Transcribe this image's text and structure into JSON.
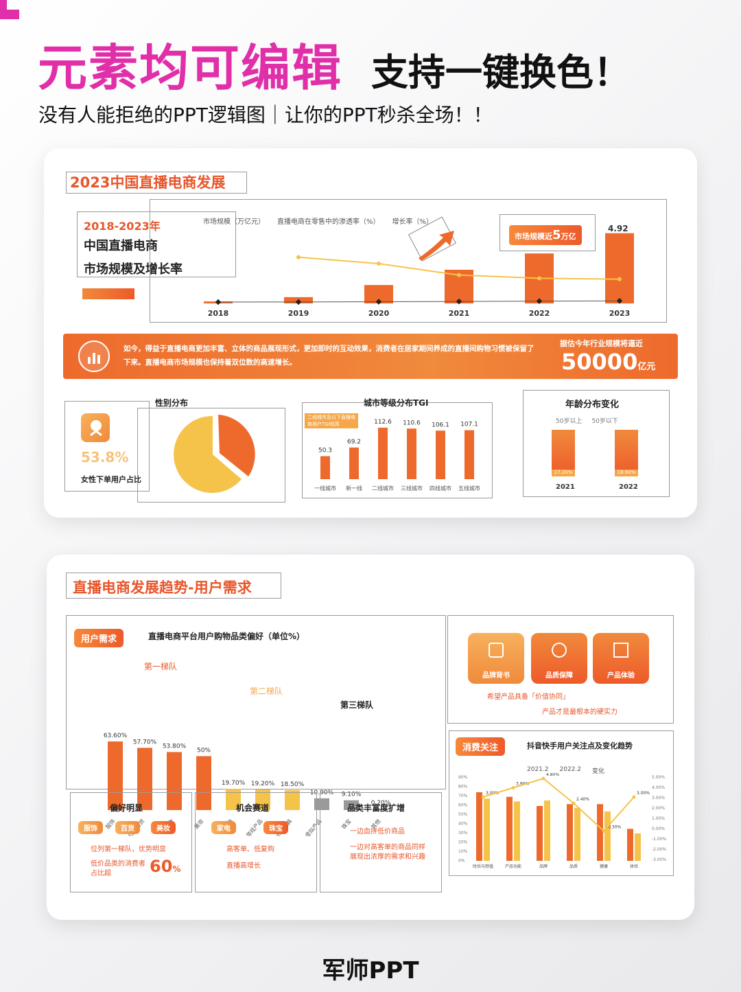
{
  "header": {
    "title_main": "元素均可编辑",
    "title_sub": "支持一键换色！",
    "tagline": "没有人能拒绝的PPT逻辑图｜让你的PPT秒杀全场！！"
  },
  "slide1": {
    "title": "2023中国直播电商发展",
    "intro_year": "2018-2023年",
    "intro_line1": "中国直播电商",
    "intro_line2": "市场规模及增长率",
    "callout": "市场规模近",
    "callout_num": "5",
    "callout_unit": "万亿",
    "top_value_label": "4.92",
    "legend": [
      "市场规模（万亿元）",
      "直播电商在零售中的渗透率（%）",
      "增长率（%）"
    ],
    "banner_text": "如今，得益于直播电商更加丰富、立体的商品展现形式，更加即时的互动效果，消费者在居家期间养成的直播间购物习惯被保留了下来。直播电商市场规模也保持着双位数的高速增长。",
    "banner_right_label": "据估今年行业规模将逼近",
    "banner_right_value": "50000",
    "banner_right_unit": "亿元",
    "female_pct": "53.8%",
    "female_label": "女性下单用户占比",
    "gender_title": "性别分布",
    "city_title": "城市等级分布TGI",
    "city_note": "二线城市及以下直播电商用户TGI较高",
    "age_title": "年龄分布变化",
    "age_legend": [
      "50岁以上",
      "50岁以下"
    ],
    "age_labels": [
      "17.20%",
      "18.90%"
    ]
  },
  "chart_data": [
    {
      "type": "bar",
      "title": "",
      "categories": [
        "2018",
        "2019",
        "2020",
        "2021",
        "2022",
        "2023"
      ],
      "series": [
        {
          "name": "市场规模（万亿元）",
          "values": [
            0.14,
            0.44,
            1.29,
            2.36,
            3.5,
            4.92
          ]
        },
        {
          "name": "增长率（%）",
          "values": [
            null,
            280,
            210,
            85,
            50,
            40
          ]
        },
        {
          "name": "直播电商在零售中的渗透率（%）",
          "values": [
            0.5,
            1.5,
            4.5,
            9.2,
            13.5,
            17.0
          ]
        }
      ]
    },
    {
      "type": "bar",
      "title": "城市等级分布TGI",
      "categories": [
        "一线城市",
        "新一线",
        "二线城市",
        "三线城市",
        "四线城市",
        "五线城市"
      ],
      "values": [
        50.3,
        69.2,
        112.6,
        110.6,
        106.1,
        107.1
      ]
    },
    {
      "type": "bar",
      "title": "直播电商平台用户购物品类偏好（单位%）",
      "categories": [
        "服饰",
        "日用百货",
        "美食",
        "美妆",
        "家电",
        "游戏产品",
        "书籍文具",
        "虚拟产品",
        "珠宝",
        "其他"
      ],
      "values": [
        63.6,
        57.7,
        53.8,
        50,
        19.7,
        19.2,
        18.5,
        10.9,
        9.1,
        0.2
      ],
      "value_labels": [
        "63.60%",
        "57.70%",
        "53.80%",
        "50%",
        "19.70%",
        "19.20%",
        "18.50%",
        "10.90%",
        "9.10%",
        "0.20%"
      ]
    }
  ],
  "slide2": {
    "title": "直播电商发展趋势-用户需求",
    "user_need_tag": "用户需求",
    "pref_title": "直播电商平台用户购物品类偏好（单位%）",
    "tiers": [
      "第一梯队",
      "第二梯队",
      "第三梯队"
    ],
    "card_titles": [
      "偏好明显",
      "机会赛道",
      "品类丰富度扩增"
    ],
    "pref_pills": [
      "服饰",
      "百货",
      "美妆"
    ],
    "pref_note1": "位列第一梯队，优势明显",
    "pref_note2": "低价品类的消费者占比超",
    "pref_pct": "60",
    "pref_pct_unit": "%",
    "chance_pills": [
      "家电",
      "珠宝"
    ],
    "chance_note1": "高客单、低复购",
    "chance_note2": "直播高增长",
    "rich_note1": "一边血拼低价商品",
    "rich_note2": "一边对高客单的商品同样展现出浓厚的需求和兴趣",
    "icon_labels": [
      "品牌背书",
      "品质保障",
      "产品体验"
    ],
    "need_note1": "希望产品具备「价值协同」",
    "need_note2": "产品才是最根本的硬实力",
    "consume_tag": "消费关注",
    "consume_title": "抖音快手用户关注点及变化趋势",
    "trend_legend": [
      "2021.2",
      "2022.2",
      "变化"
    ],
    "trend_categories": [
      "时尚与颜值",
      "产品功能",
      "品牌",
      "品质",
      "健康",
      "体验"
    ],
    "trend_labels": [
      "3.00%",
      "3.90%",
      "4.80%",
      "2.40%",
      "-0.30%",
      "3.00%"
    ],
    "y_left": [
      "90%",
      "80%",
      "70%",
      "60%",
      "50%",
      "40%",
      "30%",
      "20%",
      "10%",
      "0%"
    ],
    "y_right": [
      "5.00%",
      "4.00%",
      "3.00%",
      "2.00%",
      "1.00%",
      "0.00%",
      "-1.00%",
      "-2.00%",
      "-3.00%"
    ]
  },
  "footer": {
    "brand": "军师PPT"
  },
  "colors": {
    "accent": "#e02fa8",
    "orange": "#ee6a2c",
    "yellow": "#f5c34a"
  }
}
